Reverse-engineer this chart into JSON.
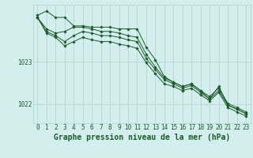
{
  "background_color": "#d4eeed",
  "grid_color": "#aed4d0",
  "line_color": "#1a5c2a",
  "marker_color": "#1a5c2a",
  "xlabel": "Graphe pression niveau de la mer (hPa)",
  "xlabel_fontsize": 7,
  "tick_fontsize": 5.5,
  "xlim": [
    -0.5,
    23.5
  ],
  "ylim": [
    1021.55,
    1024.35
  ],
  "yticks": [
    1022,
    1023
  ],
  "xticks": [
    0,
    1,
    2,
    3,
    4,
    5,
    6,
    7,
    8,
    9,
    10,
    11,
    12,
    13,
    14,
    15,
    16,
    17,
    18,
    19,
    20,
    21,
    22,
    23
  ],
  "series": [
    [
      1024.1,
      1024.2,
      1024.05,
      1024.05,
      1023.85,
      1023.85,
      1023.82,
      1023.82,
      1023.82,
      1023.78,
      1023.78,
      1023.78,
      1023.35,
      1023.05,
      1022.65,
      1022.52,
      1022.42,
      1022.48,
      1022.32,
      1022.12,
      1022.42,
      1021.98,
      1021.88,
      1021.78
    ],
    [
      1024.05,
      1023.78,
      1023.68,
      1023.72,
      1023.82,
      1023.82,
      1023.78,
      1023.72,
      1023.72,
      1023.68,
      1023.62,
      1023.58,
      1023.18,
      1022.88,
      1022.62,
      1022.52,
      1022.42,
      1022.48,
      1022.32,
      1022.18,
      1022.38,
      1022.02,
      1021.92,
      1021.82
    ],
    [
      1024.05,
      1023.72,
      1023.62,
      1023.48,
      1023.62,
      1023.72,
      1023.68,
      1023.62,
      1023.62,
      1023.58,
      1023.52,
      1023.48,
      1023.08,
      1022.82,
      1022.58,
      1022.48,
      1022.38,
      1022.44,
      1022.28,
      1022.12,
      1022.32,
      1021.98,
      1021.88,
      1021.78
    ],
    [
      1024.05,
      1023.68,
      1023.58,
      1023.38,
      1023.48,
      1023.58,
      1023.52,
      1023.48,
      1023.48,
      1023.42,
      1023.38,
      1023.32,
      1022.98,
      1022.72,
      1022.48,
      1022.42,
      1022.32,
      1022.38,
      1022.22,
      1022.08,
      1022.28,
      1021.92,
      1021.82,
      1021.72
    ]
  ]
}
